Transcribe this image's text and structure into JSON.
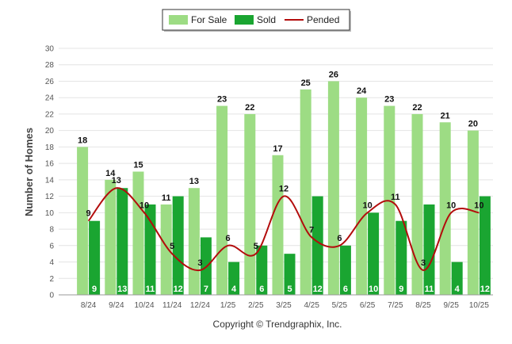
{
  "chart_data": {
    "type": "bar",
    "ylabel": "Number of Homes",
    "ylim": [
      0,
      30
    ],
    "yticks": [
      0,
      2,
      4,
      6,
      8,
      10,
      12,
      14,
      16,
      18,
      20,
      22,
      24,
      26,
      28,
      30
    ],
    "categories": [
      "8/24",
      "9/24",
      "10/24",
      "11/24",
      "12/24",
      "1/25",
      "2/25",
      "3/25",
      "4/25",
      "5/25",
      "6/25",
      "7/25",
      "8/25",
      "9/25",
      "10/25"
    ],
    "series": [
      {
        "name": "For Sale",
        "kind": "bar",
        "color": "#9ddc84",
        "values": [
          18,
          14,
          15,
          11,
          13,
          23,
          22,
          17,
          25,
          26,
          24,
          23,
          22,
          21,
          20
        ]
      },
      {
        "name": "Sold",
        "kind": "bar",
        "color": "#1aa531",
        "values": [
          9,
          13,
          11,
          12,
          7,
          4,
          6,
          5,
          12,
          6,
          10,
          9,
          11,
          4,
          12
        ]
      },
      {
        "name": "Pended",
        "kind": "line",
        "color": "#b30c0c",
        "values": [
          9,
          13,
          10,
          5,
          3,
          6,
          5,
          12,
          7,
          6,
          10,
          11,
          3,
          10,
          10
        ]
      }
    ],
    "grid": true,
    "legend_position": "top-center",
    "credit": "Copyright © Trendgraphix, Inc."
  }
}
